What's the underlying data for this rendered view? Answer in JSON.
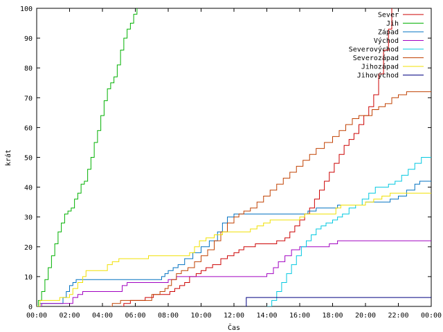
{
  "chart_data": {
    "type": "line",
    "title": "",
    "xlabel": "Čas",
    "ylabel": "krát",
    "xlim": [
      0,
      24
    ],
    "ylim": [
      0,
      100
    ],
    "x_ticks": [
      0,
      2,
      4,
      6,
      8,
      10,
      12,
      14,
      16,
      18,
      20,
      22,
      24
    ],
    "x_tick_labels": [
      "00:00",
      "02:00",
      "04:00",
      "06:00",
      "08:00",
      "10:00",
      "12:00",
      "14:00",
      "16:00",
      "18:00",
      "20:00",
      "22:00",
      "00:00"
    ],
    "y_ticks": [
      0,
      10,
      20,
      30,
      40,
      50,
      60,
      70,
      80,
      90,
      100
    ],
    "y_tick_labels": [
      "0",
      "10",
      "20",
      "30",
      "40",
      "50",
      "60",
      "70",
      "80",
      "90",
      "100"
    ],
    "legend_position": "top-right",
    "series": [
      {
        "name": "Sever",
        "color": "#cc0000",
        "points": [
          [
            5.2,
            0
          ],
          [
            5.3,
            1
          ],
          [
            5.6,
            1
          ],
          [
            5.7,
            2
          ],
          [
            6.5,
            2
          ],
          [
            6.6,
            3
          ],
          [
            7.0,
            3
          ],
          [
            7.1,
            4
          ],
          [
            8.0,
            4
          ],
          [
            8.1,
            5
          ],
          [
            8.3,
            5
          ],
          [
            8.4,
            6
          ],
          [
            8.7,
            7
          ],
          [
            9.0,
            8
          ],
          [
            9.3,
            10
          ],
          [
            9.7,
            11
          ],
          [
            10.0,
            12
          ],
          [
            10.3,
            13
          ],
          [
            10.7,
            14
          ],
          [
            11.2,
            16
          ],
          [
            11.6,
            17
          ],
          [
            12.0,
            18
          ],
          [
            12.3,
            19
          ],
          [
            12.6,
            20
          ],
          [
            13.2,
            20
          ],
          [
            13.3,
            21
          ],
          [
            14.5,
            21
          ],
          [
            14.6,
            22
          ],
          [
            15.0,
            22
          ],
          [
            15.1,
            23
          ],
          [
            15.4,
            25
          ],
          [
            15.7,
            27
          ],
          [
            16.0,
            29
          ],
          [
            16.3,
            31
          ],
          [
            16.6,
            33
          ],
          [
            16.9,
            36
          ],
          [
            17.2,
            39
          ],
          [
            17.5,
            42
          ],
          [
            17.8,
            45
          ],
          [
            18.1,
            48
          ],
          [
            18.4,
            51
          ],
          [
            18.7,
            54
          ],
          [
            19.0,
            56
          ],
          [
            19.3,
            58
          ],
          [
            19.6,
            61
          ],
          [
            19.9,
            64
          ],
          [
            20.2,
            67
          ],
          [
            20.5,
            71
          ],
          [
            20.8,
            78
          ],
          [
            21.1,
            86
          ],
          [
            21.4,
            93
          ],
          [
            21.6,
            100
          ]
        ]
      },
      {
        "name": "Jih",
        "color": "#00b000",
        "points": [
          [
            0,
            0
          ],
          [
            0.1,
            2
          ],
          [
            0.3,
            5
          ],
          [
            0.5,
            9
          ],
          [
            0.7,
            13
          ],
          [
            0.9,
            17
          ],
          [
            1.1,
            21
          ],
          [
            1.3,
            25
          ],
          [
            1.5,
            28
          ],
          [
            1.7,
            31
          ],
          [
            1.9,
            32
          ],
          [
            2.1,
            33
          ],
          [
            2.3,
            36
          ],
          [
            2.5,
            38
          ],
          [
            2.7,
            41
          ],
          [
            2.9,
            42
          ],
          [
            3.1,
            46
          ],
          [
            3.3,
            50
          ],
          [
            3.5,
            55
          ],
          [
            3.7,
            59
          ],
          [
            3.9,
            64
          ],
          [
            4.1,
            69
          ],
          [
            4.3,
            73
          ],
          [
            4.5,
            75
          ],
          [
            4.7,
            77
          ],
          [
            4.9,
            81
          ],
          [
            5.1,
            86
          ],
          [
            5.3,
            90
          ],
          [
            5.5,
            93
          ],
          [
            5.7,
            95
          ],
          [
            5.9,
            98
          ],
          [
            6.1,
            100
          ]
        ]
      },
      {
        "name": "Západ",
        "color": "#0070c0",
        "points": [
          [
            0,
            0
          ],
          [
            0.2,
            1
          ],
          [
            1.5,
            1
          ],
          [
            1.6,
            3
          ],
          [
            1.8,
            5
          ],
          [
            2.0,
            7
          ],
          [
            2.2,
            8
          ],
          [
            2.4,
            9
          ],
          [
            7.5,
            9
          ],
          [
            7.6,
            10
          ],
          [
            7.8,
            11
          ],
          [
            8.0,
            12
          ],
          [
            8.3,
            13
          ],
          [
            8.6,
            14
          ],
          [
            9.0,
            16
          ],
          [
            9.5,
            18
          ],
          [
            10.0,
            20
          ],
          [
            10.5,
            22
          ],
          [
            11.0,
            25
          ],
          [
            11.3,
            28
          ],
          [
            11.6,
            30
          ],
          [
            12.0,
            31
          ],
          [
            13.0,
            31
          ],
          [
            16.3,
            31
          ],
          [
            16.5,
            32
          ],
          [
            17.0,
            33
          ],
          [
            18.0,
            33
          ],
          [
            18.3,
            34
          ],
          [
            19.5,
            34
          ],
          [
            20.0,
            35
          ],
          [
            21.0,
            35
          ],
          [
            21.5,
            36
          ],
          [
            22.0,
            37
          ],
          [
            22.5,
            39
          ],
          [
            23.0,
            41
          ],
          [
            23.3,
            42
          ],
          [
            24,
            42
          ]
        ]
      },
      {
        "name": "Východ",
        "color": "#a000c0",
        "points": [
          [
            0,
            0
          ],
          [
            0.3,
            1
          ],
          [
            2.1,
            1
          ],
          [
            2.2,
            3
          ],
          [
            2.5,
            4
          ],
          [
            2.8,
            5
          ],
          [
            5.0,
            5
          ],
          [
            5.2,
            7
          ],
          [
            5.5,
            8
          ],
          [
            7.8,
            8
          ],
          [
            8.0,
            9
          ],
          [
            8.5,
            10
          ],
          [
            13.8,
            10
          ],
          [
            14.0,
            11
          ],
          [
            14.4,
            13
          ],
          [
            14.7,
            15
          ],
          [
            15.1,
            17
          ],
          [
            15.5,
            19
          ],
          [
            16.0,
            20
          ],
          [
            17.5,
            20
          ],
          [
            17.8,
            21
          ],
          [
            18.3,
            22
          ],
          [
            24,
            22
          ]
        ]
      },
      {
        "name": "Severovýchod",
        "color": "#00c8e0",
        "points": [
          [
            14.0,
            0
          ],
          [
            14.3,
            2
          ],
          [
            14.6,
            5
          ],
          [
            14.9,
            8
          ],
          [
            15.2,
            11
          ],
          [
            15.5,
            14
          ],
          [
            15.8,
            17
          ],
          [
            16.1,
            20
          ],
          [
            16.4,
            22
          ],
          [
            16.7,
            24
          ],
          [
            17.0,
            26
          ],
          [
            17.3,
            27
          ],
          [
            17.6,
            28
          ],
          [
            18.0,
            29
          ],
          [
            18.3,
            30
          ],
          [
            18.6,
            31
          ],
          [
            19.0,
            33
          ],
          [
            19.4,
            34
          ],
          [
            19.8,
            36
          ],
          [
            20.2,
            38
          ],
          [
            20.6,
            40
          ],
          [
            21.0,
            40
          ],
          [
            21.4,
            41
          ],
          [
            21.8,
            42
          ],
          [
            22.2,
            44
          ],
          [
            22.6,
            46
          ],
          [
            23.0,
            48
          ],
          [
            23.4,
            50
          ],
          [
            24,
            50
          ]
        ]
      },
      {
        "name": "Severozápad",
        "color": "#c04000",
        "points": [
          [
            4.5,
            0
          ],
          [
            4.6,
            1
          ],
          [
            5.0,
            1
          ],
          [
            5.1,
            2
          ],
          [
            6.5,
            2
          ],
          [
            7.0,
            4
          ],
          [
            7.5,
            5
          ],
          [
            7.8,
            6
          ],
          [
            8.0,
            7
          ],
          [
            8.2,
            9
          ],
          [
            8.5,
            11
          ],
          [
            8.8,
            12
          ],
          [
            9.2,
            13
          ],
          [
            9.6,
            15
          ],
          [
            10.0,
            17
          ],
          [
            10.4,
            19
          ],
          [
            10.8,
            22
          ],
          [
            11.2,
            25
          ],
          [
            11.6,
            28
          ],
          [
            12.0,
            30
          ],
          [
            12.3,
            31
          ],
          [
            12.6,
            32
          ],
          [
            13.0,
            33
          ],
          [
            13.4,
            35
          ],
          [
            13.8,
            37
          ],
          [
            14.2,
            39
          ],
          [
            14.6,
            41
          ],
          [
            15.0,
            43
          ],
          [
            15.4,
            45
          ],
          [
            15.8,
            47
          ],
          [
            16.2,
            49
          ],
          [
            16.6,
            51
          ],
          [
            17.0,
            53
          ],
          [
            17.5,
            55
          ],
          [
            18.0,
            57
          ],
          [
            18.4,
            59
          ],
          [
            18.8,
            61
          ],
          [
            19.2,
            63
          ],
          [
            19.6,
            64
          ],
          [
            20.0,
            64
          ],
          [
            20.4,
            66
          ],
          [
            20.8,
            67
          ],
          [
            21.2,
            68
          ],
          [
            21.6,
            70
          ],
          [
            22.0,
            71
          ],
          [
            22.5,
            72
          ],
          [
            24,
            72
          ]
        ]
      },
      {
        "name": "Jihozápad",
        "color": "#f0e000",
        "points": [
          [
            0,
            0
          ],
          [
            0.2,
            2
          ],
          [
            1.2,
            2
          ],
          [
            1.4,
            3
          ],
          [
            2.0,
            4
          ],
          [
            2.2,
            6
          ],
          [
            2.5,
            8
          ],
          [
            2.8,
            10
          ],
          [
            3.0,
            12
          ],
          [
            4.0,
            12
          ],
          [
            4.3,
            14
          ],
          [
            4.6,
            15
          ],
          [
            5.0,
            16
          ],
          [
            6.5,
            16
          ],
          [
            6.8,
            17
          ],
          [
            8.0,
            17
          ],
          [
            9.3,
            18
          ],
          [
            9.6,
            20
          ],
          [
            9.9,
            22
          ],
          [
            10.3,
            23
          ],
          [
            10.8,
            24
          ],
          [
            11.3,
            25
          ],
          [
            12.5,
            25
          ],
          [
            13.0,
            26
          ],
          [
            13.4,
            27
          ],
          [
            13.8,
            28
          ],
          [
            14.2,
            29
          ],
          [
            15.0,
            29
          ],
          [
            16.0,
            30
          ],
          [
            16.3,
            31
          ],
          [
            18.0,
            31
          ],
          [
            18.2,
            33
          ],
          [
            18.5,
            34
          ],
          [
            19.5,
            34
          ],
          [
            20.0,
            35
          ],
          [
            20.5,
            36
          ],
          [
            21.0,
            37
          ],
          [
            21.5,
            38
          ],
          [
            24,
            38
          ]
        ]
      },
      {
        "name": "Jihovýchod",
        "color": "#000080",
        "points": [
          [
            12.7,
            0
          ],
          [
            12.75,
            3
          ],
          [
            24,
            3
          ]
        ]
      }
    ]
  }
}
